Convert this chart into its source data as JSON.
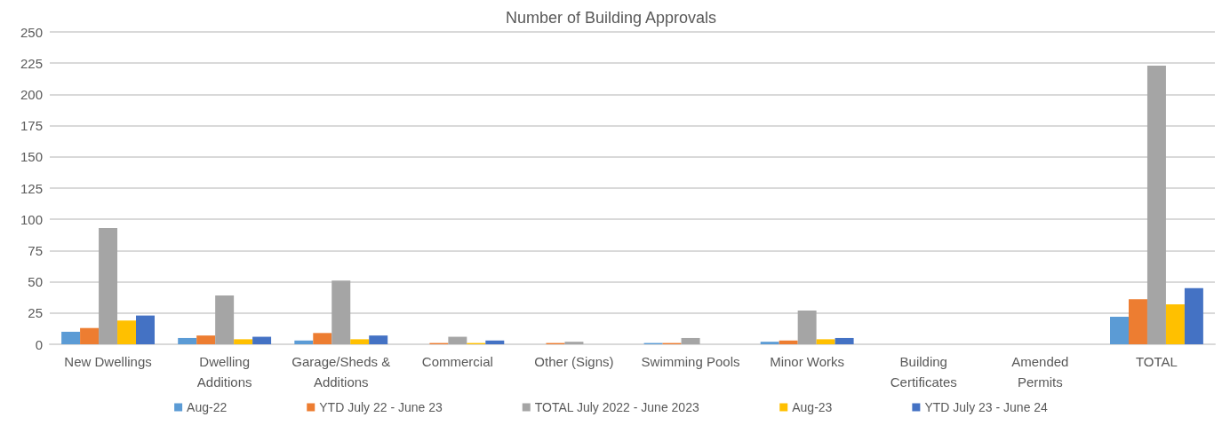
{
  "chart_data": {
    "type": "bar",
    "title": "Number of Building Approvals",
    "categories": [
      "New Dwellings",
      "Dwelling\nAdditions",
      "Garage/Sheds &\nAdditions",
      "Commercial",
      "Other (Signs)",
      "Swimming Pools",
      "Minor Works",
      "Building\nCertificates",
      "Amended\nPermits",
      "TOTAL"
    ],
    "series": [
      {
        "name": "Aug-22",
        "color": "#5b9bd5",
        "values": [
          10,
          5,
          3,
          0,
          0,
          1,
          2,
          0,
          0,
          22
        ]
      },
      {
        "name": "YTD July 22 - June 23",
        "color": "#ed7d31",
        "values": [
          13,
          7,
          9,
          1,
          1,
          1,
          3,
          0,
          0,
          36
        ]
      },
      {
        "name": "TOTAL July 2022 - June 2023",
        "color": "#a5a5a5",
        "values": [
          93,
          39,
          51,
          6,
          2,
          5,
          27,
          0,
          0,
          223
        ]
      },
      {
        "name": "Aug-23",
        "color": "#ffc000",
        "values": [
          19,
          4,
          4,
          1,
          0,
          0,
          4,
          0,
          0,
          32
        ]
      },
      {
        "name": "YTD July 23 - June 24",
        "color": "#4472c4",
        "values": [
          23,
          6,
          7,
          3,
          0,
          0,
          5,
          0,
          0,
          45
        ]
      }
    ],
    "ylim": [
      0,
      250
    ],
    "yticks": [
      0,
      25,
      50,
      75,
      100,
      125,
      150,
      175,
      200,
      225,
      250
    ],
    "grid": "y",
    "legend": "bottom"
  }
}
